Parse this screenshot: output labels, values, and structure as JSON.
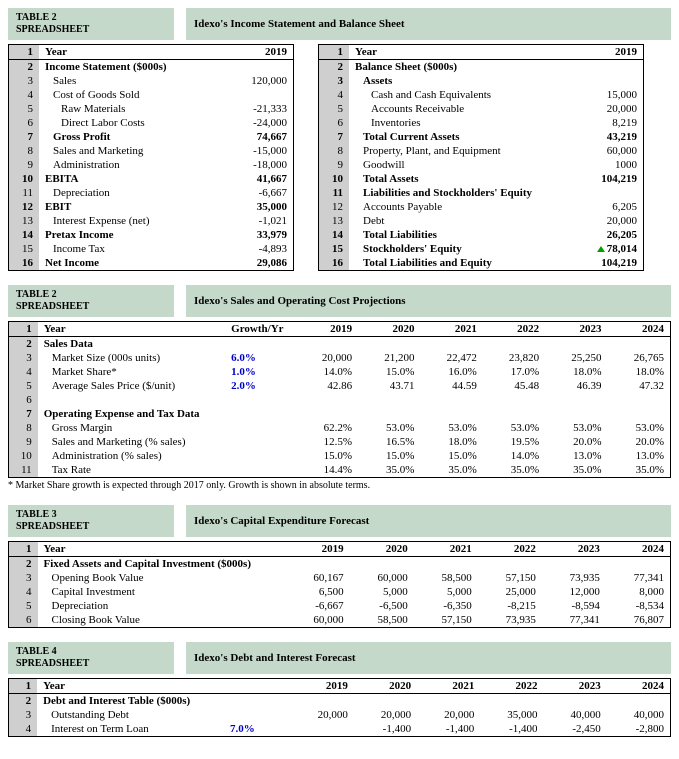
{
  "section1": {
    "label_line1": "TABLE 2",
    "label_line2": "SPREADSHEET",
    "title": "Idexo's Income Statement and Balance Sheet",
    "left": {
      "year_label": "Year",
      "year_val": "2019",
      "rows": [
        {
          "n": 2,
          "label": "Income Statement ($000s)",
          "bold": true
        },
        {
          "n": 3,
          "label": "Sales",
          "v": "120,000",
          "indent": 1
        },
        {
          "n": 4,
          "label": "Cost of Goods Sold",
          "indent": 1
        },
        {
          "n": 5,
          "label": "Raw Materials",
          "v": "-21,333",
          "indent": 2
        },
        {
          "n": 6,
          "label": "Direct Labor Costs",
          "v": "-24,000",
          "indent": 2
        },
        {
          "n": 7,
          "label": "Gross Profit",
          "v": "74,667",
          "indent": 1,
          "bold": true
        },
        {
          "n": 8,
          "label": "Sales and Marketing",
          "v": "-15,000",
          "indent": 1
        },
        {
          "n": 9,
          "label": "Administration",
          "v": "-18,000",
          "indent": 1
        },
        {
          "n": 10,
          "label": "EBITA",
          "v": "41,667",
          "indent": 0,
          "bold": true
        },
        {
          "n": 11,
          "label": "Depreciation",
          "v": "-6,667",
          "indent": 1
        },
        {
          "n": 12,
          "label": "EBIT",
          "v": "35,000",
          "indent": 0,
          "bold": true
        },
        {
          "n": 13,
          "label": "Interest Expense (net)",
          "v": "-1,021",
          "indent": 1
        },
        {
          "n": 14,
          "label": "Pretax Income",
          "v": "33,979",
          "indent": 0,
          "bold": true
        },
        {
          "n": 15,
          "label": "Income Tax",
          "v": "-4,893",
          "indent": 1
        },
        {
          "n": 16,
          "label": "Net Income",
          "v": "29,086",
          "indent": 0,
          "bold": true
        }
      ]
    },
    "right": {
      "year_label": "Year",
      "year_val": "2019",
      "rows": [
        {
          "n": 2,
          "label": "Balance Sheet ($000s)",
          "bold": true
        },
        {
          "n": 3,
          "label": "Assets",
          "bold": true,
          "indent": 1
        },
        {
          "n": 4,
          "label": "Cash and Cash Equivalents",
          "v": "15,000",
          "indent": 2
        },
        {
          "n": 5,
          "label": "Accounts Receivable",
          "v": "20,000",
          "indent": 2
        },
        {
          "n": 6,
          "label": "Inventories",
          "v": "8,219",
          "indent": 2
        },
        {
          "n": 7,
          "label": "Total Current Assets",
          "v": "43,219",
          "indent": 1,
          "bold": true
        },
        {
          "n": 8,
          "label": "Property, Plant, and Equipment",
          "v": "60,000",
          "indent": 1
        },
        {
          "n": 9,
          "label": "Goodwill",
          "v": "1000",
          "indent": 1
        },
        {
          "n": 10,
          "label": "Total Assets",
          "v": "104,219",
          "indent": 1,
          "bold": true
        },
        {
          "n": 11,
          "label": "Liabilities and Stockholders' Equity",
          "bold": true,
          "indent": 1
        },
        {
          "n": 12,
          "label": "Accounts Payable",
          "v": "6,205",
          "indent": 1
        },
        {
          "n": 13,
          "label": "Debt",
          "v": "20,000",
          "indent": 1
        },
        {
          "n": 14,
          "label": "Total Liabilities",
          "v": "26,205",
          "indent": 1,
          "bold": true
        },
        {
          "n": 15,
          "label": "Stockholders' Equity",
          "v": "78,014",
          "indent": 1,
          "bold": true,
          "flag": true
        },
        {
          "n": 16,
          "label": "Total Liabilities and Equity",
          "v": "104,219",
          "indent": 1,
          "bold": true
        }
      ]
    }
  },
  "section2": {
    "label_line1": "TABLE 2",
    "label_line2": "SPREADSHEET",
    "title": "Idexo's Sales and Operating Cost Projections",
    "cols": [
      "Year",
      "Growth/Yr",
      "2019",
      "2020",
      "2021",
      "2022",
      "2023",
      "2024"
    ],
    "rows": [
      {
        "n": 2,
        "label": "Sales Data",
        "bold": true
      },
      {
        "n": 3,
        "label": "Market Size (000s units)",
        "g": "6.0%",
        "v": [
          "20,000",
          "21,200",
          "22,472",
          "23,820",
          "25,250",
          "26,765"
        ],
        "indent": 1
      },
      {
        "n": 4,
        "label": "Market Share*",
        "g": "1.0%",
        "v": [
          "14.0%",
          "15.0%",
          "16.0%",
          "17.0%",
          "18.0%",
          "18.0%"
        ],
        "indent": 1
      },
      {
        "n": 5,
        "label": "Average Sales Price ($/unit)",
        "g": "2.0%",
        "v": [
          "42.86",
          "43.71",
          "44.59",
          "45.48",
          "46.39",
          "47.32"
        ],
        "indent": 1
      },
      {
        "n": 6,
        "label": ""
      },
      {
        "n": 7,
        "label": "Operating Expense and Tax Data",
        "bold": true
      },
      {
        "n": 8,
        "label": "Gross Margin",
        "v": [
          "62.2%",
          "53.0%",
          "53.0%",
          "53.0%",
          "53.0%",
          "53.0%"
        ],
        "indent": 1
      },
      {
        "n": 9,
        "label": "Sales and Marketing (% sales)",
        "v": [
          "12.5%",
          "16.5%",
          "18.0%",
          "19.5%",
          "20.0%",
          "20.0%"
        ],
        "indent": 1
      },
      {
        "n": 10,
        "label": "Administration (% sales)",
        "v": [
          "15.0%",
          "15.0%",
          "15.0%",
          "14.0%",
          "13.0%",
          "13.0%"
        ],
        "indent": 1
      },
      {
        "n": 11,
        "label": "Tax Rate",
        "v": [
          "14.4%",
          "35.0%",
          "35.0%",
          "35.0%",
          "35.0%",
          "35.0%"
        ],
        "indent": 1
      }
    ],
    "footnote": "* Market Share growth is expected through 2017 only. Growth is shown in absolute terms."
  },
  "section3": {
    "label_line1": "TABLE 3",
    "label_line2": "SPREADSHEET",
    "title": "Idexo's Capital Expenditure Forecast",
    "cols": [
      "Year",
      "2019",
      "2020",
      "2021",
      "2022",
      "2023",
      "2024"
    ],
    "rows": [
      {
        "n": 2,
        "label": "Fixed Assets and Capital Investment ($000s)",
        "bold": true
      },
      {
        "n": 3,
        "label": "Opening Book Value",
        "v": [
          "60,167",
          "60,000",
          "58,500",
          "57,150",
          "73,935",
          "77,341"
        ],
        "indent": 1
      },
      {
        "n": 4,
        "label": "Capital Investment",
        "v": [
          "6,500",
          "5,000",
          "5,000",
          "25,000",
          "12,000",
          "8,000"
        ],
        "indent": 1
      },
      {
        "n": 5,
        "label": "Depreciation",
        "v": [
          "-6,667",
          "-6,500",
          "-6,350",
          "-8,215",
          "-8,594",
          "-8,534"
        ],
        "indent": 1
      },
      {
        "n": 6,
        "label": "Closing Book Value",
        "v": [
          "60,000",
          "58,500",
          "57,150",
          "73,935",
          "77,341",
          "76,807"
        ],
        "indent": 1
      }
    ]
  },
  "section4": {
    "label_line1": "TABLE 4",
    "label_line2": "SPREADSHEET",
    "title": "Idexo's Debt and Interest Forecast",
    "cols": [
      "Year",
      "",
      "2019",
      "2020",
      "2021",
      "2022",
      "2023",
      "2024"
    ],
    "rows": [
      {
        "n": 2,
        "label": "Debt and Interest Table ($000s)",
        "bold": true
      },
      {
        "n": 3,
        "label": "Outstanding Debt",
        "v": [
          "20,000",
          "20,000",
          "20,000",
          "35,000",
          "40,000",
          "40,000"
        ],
        "indent": 1
      },
      {
        "n": 4,
        "label": "Interest on Term Loan",
        "g": "7.0%",
        "v": [
          "",
          "-1,400",
          "-1,400",
          "-1,400",
          "-2,450",
          "-2,800"
        ],
        "indent": 1
      }
    ]
  }
}
